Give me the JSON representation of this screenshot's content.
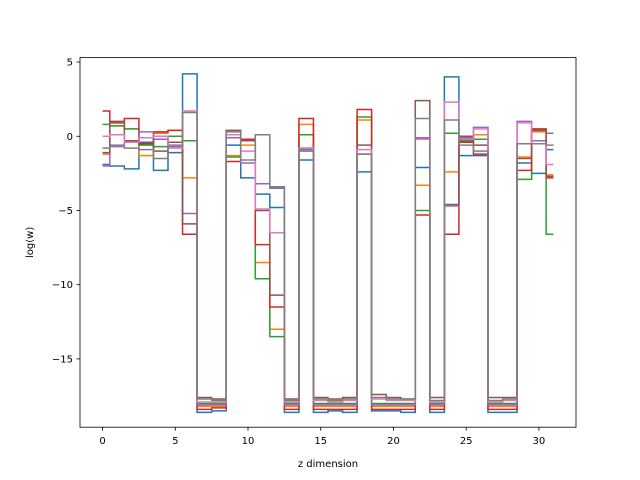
{
  "chart_data": {
    "type": "line",
    "drawstyle": "steps-mid",
    "title": "",
    "xlabel": "z dimension",
    "ylabel": "log(w)",
    "xlim": [
      -1.55,
      32.55
    ],
    "ylim": [
      -19.6,
      5.3
    ],
    "xticks": [
      0,
      5,
      10,
      15,
      20,
      25,
      30
    ],
    "yticks": [
      -15,
      -10,
      -5,
      0,
      5
    ],
    "grid": false,
    "x": [
      0,
      1,
      2,
      3,
      4,
      5,
      6,
      7,
      8,
      9,
      10,
      11,
      12,
      13,
      14,
      15,
      16,
      17,
      18,
      19,
      20,
      21,
      22,
      23,
      24,
      25,
      26,
      27,
      28,
      29,
      30,
      31
    ],
    "series": [
      {
        "color": "#1f77b4",
        "values": [
          -1.9,
          -2.0,
          -2.2,
          -0.4,
          -2.3,
          -1.1,
          4.2,
          -18.6,
          -18.5,
          -0.6,
          -2.8,
          -3.9,
          -4.8,
          -18.6,
          -1.6,
          -18.6,
          -18.5,
          -18.6,
          -2.4,
          -18.5,
          -18.5,
          -18.6,
          -2.1,
          -18.6,
          4.0,
          -1.3,
          -1.3,
          -18.6,
          -18.6,
          -1.8,
          -2.5,
          -0.9
        ]
      },
      {
        "color": "#ff7f0e",
        "values": [
          -1.2,
          0.7,
          0.5,
          -1.3,
          0.2,
          0.4,
          -2.8,
          -18.2,
          -18.2,
          -1.3,
          -0.6,
          -8.5,
          -13.0,
          -18.2,
          0.8,
          -18.2,
          -18.2,
          -18.2,
          1.1,
          -18.2,
          -18.2,
          -18.2,
          -3.3,
          -18.2,
          -2.4,
          -0.2,
          0.1,
          -18.2,
          -18.2,
          -1.4,
          0.3,
          -2.6
        ]
      },
      {
        "color": "#2ca02c",
        "values": [
          0.8,
          0.7,
          0.5,
          -0.6,
          -0.7,
          0.0,
          -0.3,
          -18.0,
          -18.0,
          -1.4,
          -0.2,
          -9.6,
          -13.5,
          -18.0,
          0.1,
          -18.0,
          -18.0,
          -18.0,
          1.3,
          -18.0,
          -18.0,
          -18.0,
          -5.0,
          -18.0,
          0.2,
          -0.3,
          -0.2,
          -18.0,
          -18.0,
          -2.9,
          0.4,
          -6.6
        ]
      },
      {
        "color": "#d62728",
        "values": [
          1.7,
          0.9,
          1.2,
          -0.5,
          0.3,
          0.4,
          -6.6,
          -18.4,
          -18.3,
          -1.7,
          -0.2,
          -7.3,
          -11.5,
          -18.4,
          1.2,
          -18.4,
          -18.4,
          -18.4,
          1.8,
          -18.4,
          -18.4,
          -18.4,
          -5.3,
          -18.4,
          -6.6,
          -0.4,
          -1.2,
          -18.4,
          -18.4,
          -2.3,
          0.5,
          -2.8
        ]
      },
      {
        "color": "#9467bd",
        "values": [
          -2.0,
          -0.6,
          -0.4,
          0.3,
          -0.2,
          -0.6,
          -5.2,
          -18.1,
          -18.1,
          -0.1,
          -1.8,
          -3.2,
          -3.5,
          -18.1,
          -1.0,
          -18.1,
          -18.1,
          -18.1,
          -1.2,
          -18.1,
          -18.1,
          -18.1,
          -0.1,
          -18.1,
          -4.7,
          -0.1,
          0.6,
          -18.1,
          -18.1,
          1.0,
          -0.3,
          0.2
        ]
      },
      {
        "color": "#8c564b",
        "values": [
          -1.1,
          1.0,
          -0.3,
          -0.1,
          -1.0,
          -0.4,
          -5.9,
          -17.6,
          -17.7,
          0.4,
          -0.3,
          -5.0,
          -10.7,
          -17.7,
          -0.8,
          -17.6,
          -17.7,
          -17.6,
          -0.6,
          -17.4,
          -17.6,
          -17.7,
          2.4,
          -17.6,
          -4.6,
          0.0,
          -0.6,
          -17.6,
          -17.6,
          -1.5,
          0.4,
          -2.7
        ]
      },
      {
        "color": "#e377c2",
        "values": [
          0.0,
          0.1,
          -0.4,
          -0.1,
          0.0,
          -0.8,
          1.7,
          -17.9,
          -17.9,
          0.1,
          -1.0,
          -4.9,
          -6.5,
          -17.9,
          -0.8,
          -17.8,
          -17.9,
          -17.8,
          -0.9,
          -17.7,
          -17.8,
          -17.8,
          -0.2,
          -17.9,
          2.3,
          -0.2,
          0.5,
          -17.9,
          -17.8,
          0.9,
          -0.5,
          -1.9
        ]
      },
      {
        "color": "#7f7f7f",
        "values": [
          -0.8,
          -0.7,
          -0.8,
          -0.9,
          -1.5,
          -0.7,
          1.6,
          -17.7,
          -17.8,
          0.3,
          -1.6,
          0.1,
          -3.4,
          -17.8,
          -0.9,
          -17.7,
          -17.8,
          -17.7,
          -1.2,
          -17.6,
          -17.7,
          -17.7,
          1.2,
          -17.8,
          1.1,
          -0.6,
          -1.0,
          -17.8,
          -17.7,
          -0.5,
          -0.5,
          -0.6
        ]
      }
    ]
  }
}
